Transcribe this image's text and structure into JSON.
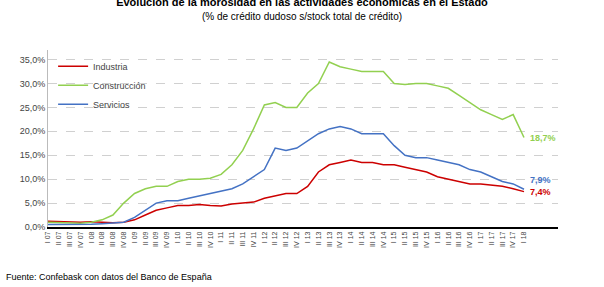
{
  "chart_data": {
    "type": "line",
    "title": "Evolución de la morosidad en las actividades económicas en el Estado",
    "subtitle": "(% de crédito dudoso s/stock total de crédito)",
    "source": "Fuente: Confebask con datos del Banco de España",
    "categories": [
      "I 07",
      "II 07",
      "III 07",
      "IV 07",
      "I 08",
      "II 08",
      "III 08",
      "IV 08",
      "I 09",
      "II 09",
      "III 09",
      "IV 09",
      "I 10",
      "II 10",
      "III 10",
      "IV 10",
      "I 11",
      "II 11",
      "III 11",
      "IV 11",
      "I 12",
      "II 12",
      "III 12",
      "IV 12",
      "I 13",
      "II 13",
      "III 13",
      "IV 13",
      "I 14",
      "II 14",
      "III 14",
      "IV 14",
      "I 15",
      "II 15",
      "III 15",
      "IV 15",
      "I 16",
      "II 16",
      "III 16",
      "IV 16",
      "I 17",
      "II 17",
      "III 17",
      "IV 17",
      "I 18"
    ],
    "series": [
      {
        "name": "Industria",
        "color": "#cc0000",
        "values": [
          1.2,
          1.1,
          1.0,
          1.0,
          1.1,
          1.0,
          0.9,
          1.0,
          1.5,
          2.5,
          3.5,
          4.0,
          4.5,
          4.5,
          4.7,
          4.5,
          4.4,
          4.8,
          5.0,
          5.2,
          6.0,
          6.5,
          7.0,
          7.0,
          8.5,
          11.5,
          13.0,
          13.5,
          14.0,
          13.5,
          13.5,
          13.0,
          13.0,
          12.5,
          12.0,
          11.5,
          10.5,
          10.0,
          9.5,
          9.0,
          9.0,
          8.8,
          8.5,
          8.0,
          7.4
        ]
      },
      {
        "name": "Construcción",
        "color": "#92d050",
        "values": [
          1.0,
          0.9,
          0.8,
          0.8,
          1.0,
          1.5,
          2.5,
          5.0,
          7.0,
          8.0,
          8.5,
          8.5,
          9.5,
          10.0,
          10.0,
          10.2,
          11.0,
          13.0,
          16.0,
          20.5,
          25.5,
          26.0,
          25.0,
          25.0,
          28.0,
          30.0,
          34.5,
          33.5,
          33.0,
          32.5,
          32.5,
          32.5,
          30.0,
          29.8,
          30.0,
          30.0,
          29.5,
          29.0,
          27.5,
          26.0,
          24.5,
          23.5,
          22.5,
          23.5,
          18.7
        ]
      },
      {
        "name": "Servicios",
        "color": "#4472c4",
        "values": [
          0.5,
          0.5,
          0.5,
          0.5,
          0.6,
          0.7,
          0.8,
          1.0,
          2.0,
          3.5,
          5.0,
          5.5,
          5.5,
          6.0,
          6.5,
          7.0,
          7.5,
          8.0,
          9.0,
          10.5,
          12.0,
          16.5,
          16.0,
          16.5,
          18.0,
          19.5,
          20.5,
          21.0,
          20.5,
          19.5,
          19.5,
          19.5,
          17.0,
          15.0,
          14.5,
          14.5,
          14.0,
          13.5,
          13.0,
          12.0,
          11.5,
          10.5,
          9.5,
          9.0,
          7.9
        ]
      }
    ],
    "annotations": [
      {
        "text": "18,7%",
        "x": "I 18",
        "y": 18.7,
        "color": "#92d050"
      },
      {
        "text": "7,9%",
        "x": "I 18",
        "y": 7.9,
        "color": "#4472c4"
      },
      {
        "text": "7,4%",
        "x": "I 18",
        "y": 7.4,
        "color": "#cc0000"
      }
    ],
    "ylim": [
      0,
      37
    ],
    "yticks": [
      {
        "value": 0.0,
        "label": "0,0%"
      },
      {
        "value": 5.0,
        "label": "5,0%"
      },
      {
        "value": 10.0,
        "label": "10,0%"
      },
      {
        "value": 15.0,
        "label": "15,0%"
      },
      {
        "value": 20.0,
        "label": "20,0%"
      },
      {
        "value": 25.0,
        "label": "25,0%"
      },
      {
        "value": 30.0,
        "label": "30,0%"
      },
      {
        "value": 35.0,
        "label": "35,0%"
      }
    ],
    "grid": true,
    "legend": "upper left"
  }
}
